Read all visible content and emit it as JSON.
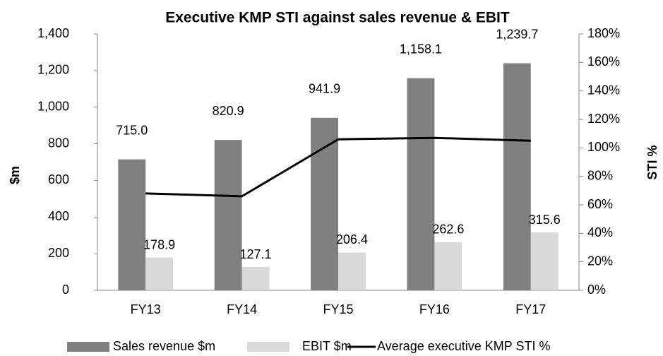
{
  "chart_data": {
    "type": "bar",
    "title": "Executive KMP STI against sales revenue & EBIT",
    "y_label": "$m",
    "y2_label": "STI %",
    "categories": [
      "FY13",
      "FY14",
      "FY15",
      "FY16",
      "FY17"
    ],
    "series": [
      {
        "name": "Sales revenue $m",
        "type": "bar",
        "color": "#808080",
        "values": [
          715.0,
          820.9,
          941.9,
          1158.1,
          1239.7
        ],
        "value_labels": [
          "715.0",
          "820.9",
          "941.9",
          "1,158.1",
          "1,239.7"
        ]
      },
      {
        "name": "EBIT $m",
        "type": "bar",
        "color": "#d9d9d9",
        "values": [
          178.9,
          127.1,
          206.4,
          262.6,
          315.6
        ]
      },
      {
        "name": "Average executive KMP STI %",
        "type": "line",
        "axis": "y2",
        "color": "#000000",
        "values": [
          68,
          66,
          106,
          107,
          105
        ]
      }
    ],
    "ylim": [
      0,
      1400
    ],
    "yticks": [
      0,
      200,
      400,
      600,
      800,
      {
        "value": 1000,
        "label": "1,000"
      },
      {
        "value": 1200,
        "label": "1,200"
      },
      {
        "value": 1400,
        "label": "1,400"
      }
    ],
    "y2lim": [
      0,
      180
    ],
    "y2ticks": [
      {
        "value": 0,
        "label": "0%"
      },
      {
        "value": 20,
        "label": "20%"
      },
      {
        "value": 40,
        "label": "40%"
      },
      {
        "value": 60,
        "label": "60%"
      },
      {
        "value": 80,
        "label": "80%"
      },
      {
        "value": 100,
        "label": "100%"
      },
      {
        "value": 120,
        "label": "120%"
      },
      {
        "value": 140,
        "label": "140%"
      },
      {
        "value": 160,
        "label": "160%"
      },
      {
        "value": 180,
        "label": "180%"
      }
    ],
    "grid": false,
    "legend": "bottom"
  }
}
